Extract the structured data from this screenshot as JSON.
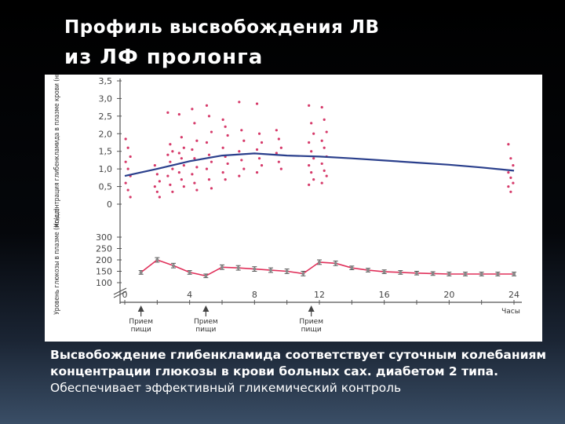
{
  "slide": {
    "title_line1": "Профиль высвобождения ЛВ",
    "title_line2": "из ЛФ пролонга",
    "caption_bold": "Высвобождение глибенкламида соответствует суточным колебаниям концентрации глюкозы в крови больных сах. диабетом 2 типа.",
    "caption_regular": " Обеспечивает эффективный гликемический контроль"
  },
  "colors": {
    "drug_line": "#2a3f8c",
    "glucose_line": "#e0305a",
    "scatter_points": "#d63a6a",
    "axis": "#555555"
  },
  "chart_data": [
    {
      "type": "scatter",
      "ylabel": "Концентрация глибенкламида в плазме крови (нг/мл)",
      "y_ticks": [
        "3,5",
        "3,0",
        "2,5",
        "2,0",
        "1,5",
        "1,0",
        "0,5",
        "0"
      ],
      "ylim": [
        0,
        3.5
      ],
      "xlim": [
        0,
        24.5
      ],
      "mean_line": {
        "x": [
          0,
          2,
          4,
          6,
          8,
          10,
          12,
          14,
          16,
          18,
          20,
          22,
          24
        ],
        "y": [
          0.8,
          1.0,
          1.22,
          1.38,
          1.44,
          1.38,
          1.35,
          1.3,
          1.24,
          1.18,
          1.12,
          1.04,
          0.95
        ]
      },
      "scatter_groups": [
        {
          "x": 0.2,
          "y": [
            1.85,
            1.6,
            1.35,
            1.2,
            1.0,
            0.8,
            0.6,
            0.4,
            0.2
          ]
        },
        {
          "x": 2.0,
          "y": [
            1.1,
            0.85,
            0.65,
            0.5,
            0.35,
            0.2
          ]
        },
        {
          "x": 2.8,
          "y": [
            2.6,
            1.7,
            1.5,
            1.4,
            1.2,
            1.0,
            0.8,
            0.55,
            0.35
          ]
        },
        {
          "x": 3.5,
          "y": [
            2.55,
            1.9,
            1.6,
            1.45,
            1.3,
            1.1,
            0.9,
            0.7,
            0.5
          ]
        },
        {
          "x": 4.3,
          "y": [
            2.7,
            2.3,
            1.8,
            1.55,
            1.3,
            1.05,
            0.85,
            0.6,
            0.4
          ]
        },
        {
          "x": 5.2,
          "y": [
            2.8,
            2.5,
            2.05,
            1.75,
            1.4,
            1.2,
            1.0,
            0.7,
            0.45
          ]
        },
        {
          "x": 6.2,
          "y": [
            2.4,
            2.2,
            1.95,
            1.6,
            1.35,
            1.15,
            0.9,
            0.7
          ]
        },
        {
          "x": 7.2,
          "y": [
            2.9,
            2.1,
            1.8,
            1.5,
            1.25,
            1.0,
            0.8
          ]
        },
        {
          "x": 8.3,
          "y": [
            2.85,
            2.0,
            1.75,
            1.55,
            1.3,
            1.1,
            0.9
          ]
        },
        {
          "x": 9.5,
          "y": [
            2.1,
            1.85,
            1.6,
            1.45,
            1.2,
            1.0
          ]
        },
        {
          "x": 11.5,
          "y": [
            2.8,
            2.3,
            2.0,
            1.75,
            1.5,
            1.3,
            1.1,
            0.9,
            0.7,
            0.55
          ]
        },
        {
          "x": 12.3,
          "y": [
            2.75,
            2.4,
            2.05,
            1.8,
            1.6,
            1.35,
            1.15,
            0.95,
            0.8,
            0.6
          ]
        },
        {
          "x": 23.8,
          "y": [
            1.7,
            1.3,
            1.1,
            0.9,
            0.75,
            0.6,
            0.5,
            0.35
          ]
        }
      ]
    },
    {
      "type": "line",
      "ylabel": "Уровень глюкозы в плазме (мг/дл)",
      "y_ticks": [
        "300",
        "250",
        "200",
        "150",
        "100"
      ],
      "ylim": [
        100,
        300
      ],
      "xlim": [
        0,
        24.5
      ],
      "x_ticks": [
        "0",
        "4",
        "8",
        "12",
        "16",
        "20",
        "24"
      ],
      "x_unit": "Часы",
      "meal_label": "Прием пищи",
      "meal_times": [
        1,
        5,
        11.5
      ],
      "x": [
        1,
        2,
        3,
        4,
        5,
        6,
        7,
        8,
        9,
        10,
        11,
        12,
        13,
        14,
        15,
        16,
        17,
        18,
        19,
        20,
        21,
        22,
        23,
        24
      ],
      "y": [
        145,
        200,
        175,
        145,
        130,
        168,
        165,
        160,
        155,
        150,
        140,
        190,
        185,
        165,
        155,
        148,
        145,
        142,
        140,
        138,
        138,
        138,
        138,
        138
      ],
      "error": [
        8,
        10,
        10,
        8,
        8,
        10,
        10,
        10,
        10,
        10,
        10,
        10,
        10,
        8,
        8,
        8,
        8,
        8,
        8,
        8,
        8,
        8,
        8,
        8
      ]
    }
  ]
}
